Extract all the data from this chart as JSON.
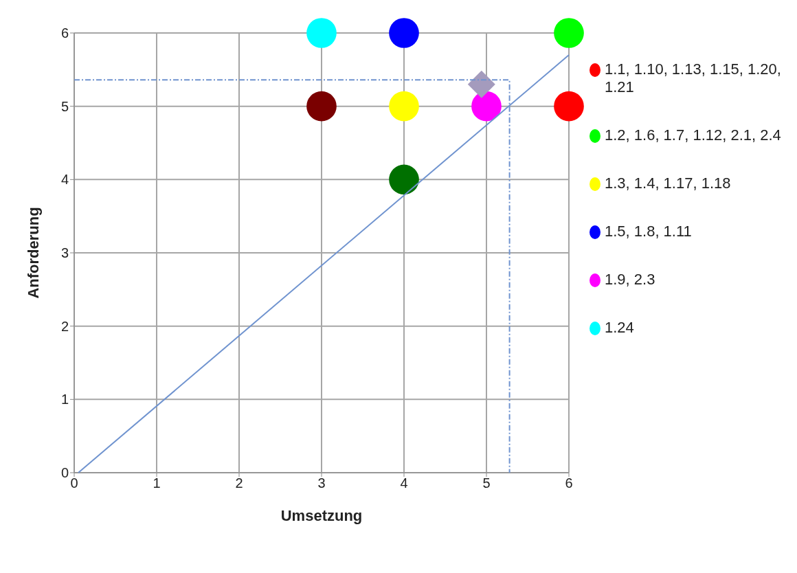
{
  "chart_data": {
    "type": "scatter",
    "xlabel": "Umsetzung",
    "ylabel": "Anforderung",
    "xlim": [
      0,
      6
    ],
    "ylim": [
      0,
      6
    ],
    "xticks": [
      0,
      1,
      2,
      3,
      4,
      5,
      6
    ],
    "yticks": [
      0,
      1,
      2,
      3,
      4,
      5,
      6
    ],
    "grid": true,
    "legend": "right",
    "marker": "circle",
    "series": [
      {
        "name": "1.1, 1.10, 1.13, 1.15, 1.20, 1.21",
        "color": "#ff0000",
        "x": [
          6
        ],
        "values": [
          5
        ]
      },
      {
        "name": "1.2, 1.6, 1.7, 1.12, 2.1, 2.4",
        "color": "#00ff00",
        "x": [
          6
        ],
        "values": [
          6
        ]
      },
      {
        "name": "1.3, 1.4, 1.17, 1.18",
        "color": "#ffff00",
        "x": [
          4
        ],
        "values": [
          5
        ]
      },
      {
        "name": "1.5, 1.8, 1.11",
        "color": "#0000ff",
        "x": [
          4
        ],
        "values": [
          6
        ]
      },
      {
        "name": "1.9, 2.3",
        "color": "#ff00ff",
        "x": [
          5
        ],
        "values": [
          5
        ]
      },
      {
        "name": "1.24",
        "color": "#00ffff",
        "x": [
          3
        ],
        "values": [
          6
        ]
      },
      {
        "color": "#7a0000",
        "x": [
          3
        ],
        "values": [
          5
        ]
      },
      {
        "color": "#007000",
        "x": [
          4
        ],
        "values": [
          4
        ]
      },
      {
        "color": "#a49bbd",
        "marker": "diamond",
        "x": [
          4.94
        ],
        "values": [
          5.3
        ]
      },
      {
        "type": "line",
        "color": "#6f93cf",
        "marker": "none",
        "line_style": "solid",
        "x": [
          0.05,
          6
        ],
        "values": [
          0,
          5.7
        ]
      },
      {
        "type": "line",
        "color": "#6f93cf",
        "marker": "none",
        "line_style": "dashed",
        "x": [
          0,
          5.28,
          5.28
        ],
        "values": [
          5.36,
          5.36,
          0
        ]
      }
    ]
  }
}
